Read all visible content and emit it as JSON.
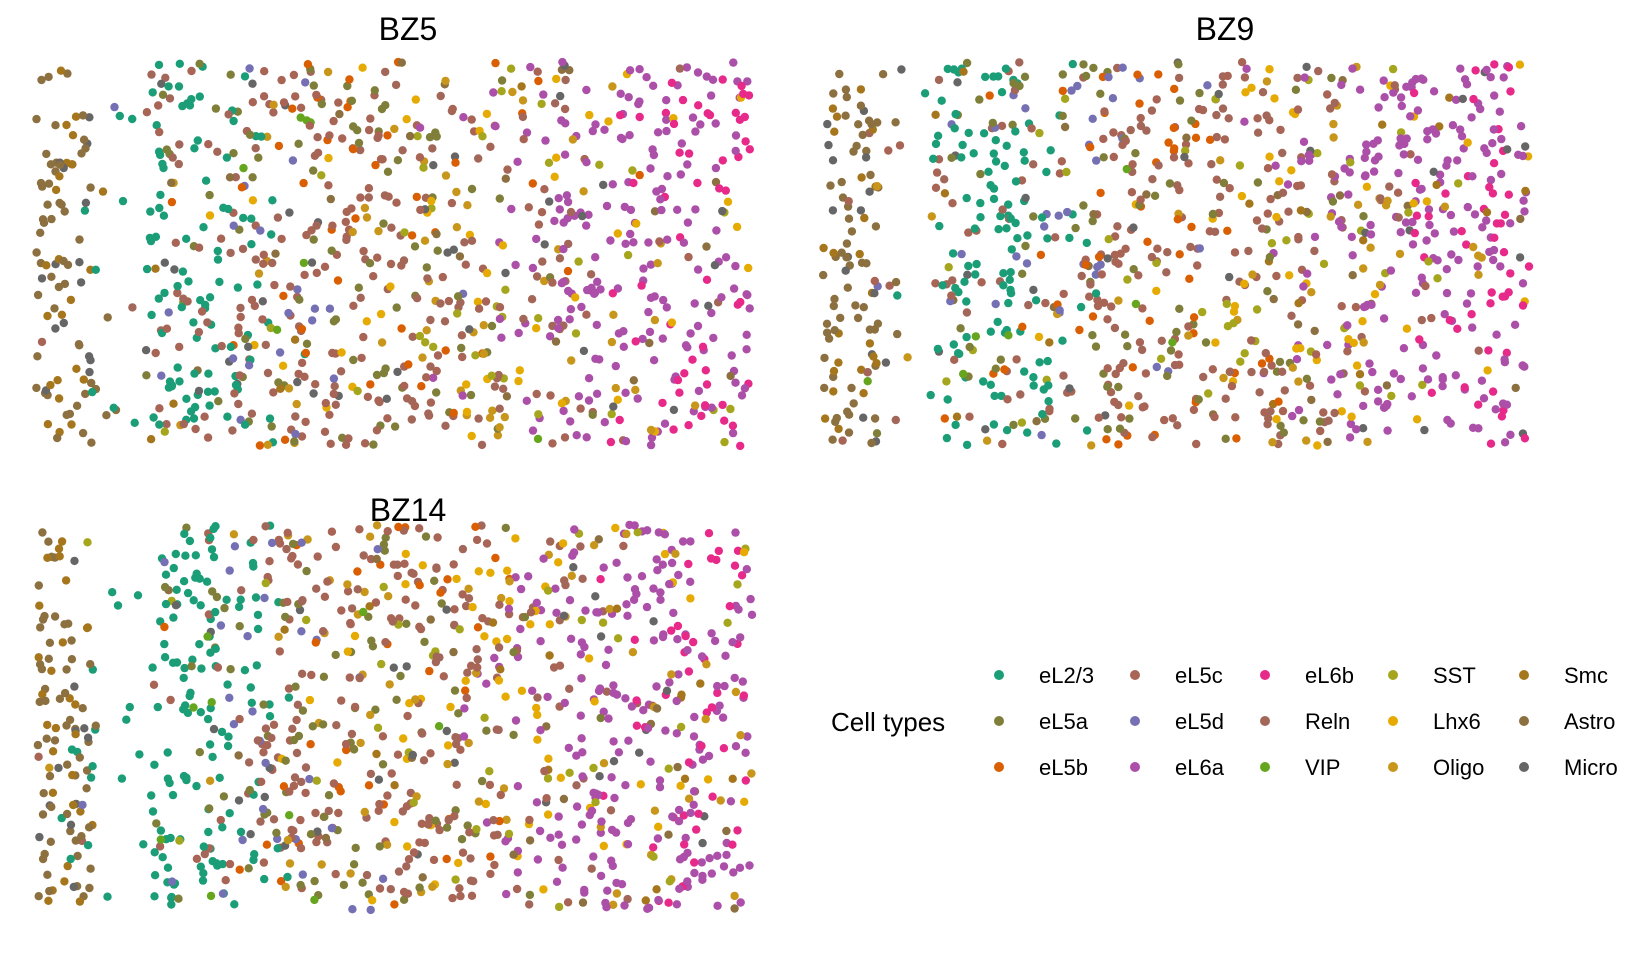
{
  "chart_data": [
    {
      "type": "scatter",
      "title": "BZ5",
      "xlabel": "",
      "ylabel": "",
      "axes_visible": false,
      "grid": false,
      "dominant_layout": {
        "eL2/3": "left band",
        "Astro": "far left edge",
        "Smc": "far left edge",
        "eL6a": "right half",
        "eL6b": "right edge, upper and lower right clusters"
      },
      "point_count_approx": 1050
    },
    {
      "type": "scatter",
      "title": "BZ9",
      "xlabel": "",
      "ylabel": "",
      "axes_visible": false,
      "grid": false,
      "dominant_layout": {
        "eL2/3": "left-center band",
        "Astro": "sparse vertical columns at far left",
        "eL6a": "right half",
        "eL6b": "upper right and middle right"
      },
      "point_count_approx": 1100
    },
    {
      "type": "scatter",
      "title": "BZ14",
      "xlabel": "",
      "ylabel": "",
      "axes_visible": false,
      "grid": false,
      "dominant_layout": {
        "eL2/3": "upper-left and lower-left diagonal band",
        "Astro": "far left edge",
        "eL6a": "right half",
        "eL6b": "right and lower middle"
      },
      "point_count_approx": 1150
    }
  ],
  "legend": {
    "title": "Cell types",
    "placement": "bottom-right",
    "columns": 5,
    "items": [
      {
        "label": "eL2/3",
        "color": "#1b9e77"
      },
      {
        "label": "eL5a",
        "color": "#7f7f3a"
      },
      {
        "label": "eL5b",
        "color": "#d95f02"
      },
      {
        "label": "eL5c",
        "color": "#a86454"
      },
      {
        "label": "eL5d",
        "color": "#7570b3"
      },
      {
        "label": "eL6a",
        "color": "#ab4fa8"
      },
      {
        "label": "eL6b",
        "color": "#e7298a"
      },
      {
        "label": "Reln",
        "color": "#a3675a"
      },
      {
        "label": "VIP",
        "color": "#66a61e"
      },
      {
        "label": "SST",
        "color": "#a6a61e"
      },
      {
        "label": "Lhx6",
        "color": "#e6ab02"
      },
      {
        "label": "Oligo",
        "color": "#c8961b"
      },
      {
        "label": "Smc",
        "color": "#a6761d"
      },
      {
        "label": "Astro",
        "color": "#8c7040"
      },
      {
        "label": "Micro",
        "color": "#666666"
      }
    ]
  }
}
